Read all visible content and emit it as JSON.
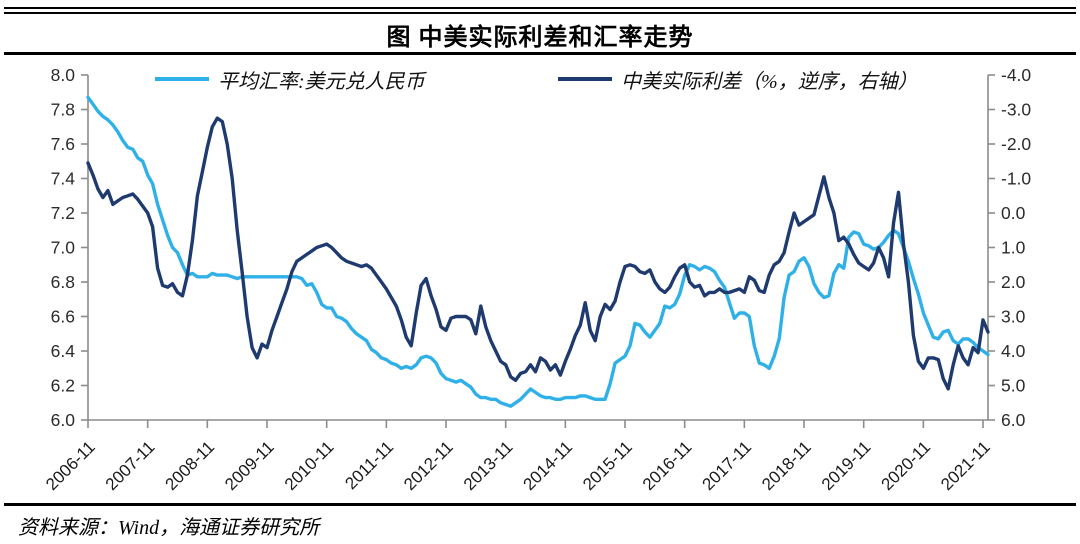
{
  "header": {
    "title": "图  中美实际利差和汇率走势"
  },
  "footer": {
    "source": "资料来源：Wind，海通证券研究所"
  },
  "chart_data": {
    "type": "line",
    "title": "图 中美实际利差和汇率走势",
    "grid": false,
    "legend_position": "top",
    "x_tick_labels": [
      "2006-11",
      "2007-11",
      "2008-11",
      "2009-11",
      "2010-11",
      "2011-11",
      "2012-11",
      "2013-11",
      "2014-11",
      "2015-11",
      "2016-11",
      "2017-11",
      "2018-11",
      "2019-11",
      "2020-11",
      "2021-11"
    ],
    "left_axis": {
      "min": 6.0,
      "max": 8.0,
      "inverted": false,
      "tick_labels": [
        "8.0",
        "7.8",
        "7.6",
        "7.4",
        "7.2",
        "7.0",
        "6.8",
        "6.6",
        "6.4",
        "6.2",
        "6.0"
      ]
    },
    "right_axis": {
      "min": -4.0,
      "max": 6.0,
      "inverted": true,
      "tick_labels": [
        "-4.0",
        "-3.0",
        "-2.0",
        "-1.0",
        "0.0",
        "1.0",
        "2.0",
        "3.0",
        "4.0",
        "5.0",
        "6.0"
      ]
    },
    "series": [
      {
        "id": "usdcny-line",
        "name": "平均汇率:美元兑人民币",
        "axis": "left",
        "color": "#2FB1E8",
        "start": "2006-11",
        "freq": "monthly",
        "values": [
          7.87,
          7.83,
          7.79,
          7.76,
          7.74,
          7.71,
          7.67,
          7.62,
          7.58,
          7.57,
          7.52,
          7.5,
          7.42,
          7.37,
          7.25,
          7.16,
          7.07,
          7.0,
          6.97,
          6.9,
          6.84,
          6.85,
          6.83,
          6.83,
          6.83,
          6.85,
          6.84,
          6.84,
          6.84,
          6.83,
          6.82,
          6.83,
          6.83,
          6.83,
          6.83,
          6.83,
          6.83,
          6.83,
          6.83,
          6.83,
          6.83,
          6.83,
          6.83,
          6.82,
          6.78,
          6.79,
          6.74,
          6.67,
          6.65,
          6.65,
          6.6,
          6.59,
          6.57,
          6.53,
          6.5,
          6.48,
          6.46,
          6.41,
          6.39,
          6.36,
          6.35,
          6.33,
          6.32,
          6.3,
          6.31,
          6.3,
          6.32,
          6.36,
          6.37,
          6.36,
          6.33,
          6.27,
          6.24,
          6.23,
          6.22,
          6.23,
          6.21,
          6.19,
          6.15,
          6.13,
          6.13,
          6.12,
          6.12,
          6.1,
          6.09,
          6.08,
          6.1,
          6.12,
          6.15,
          6.18,
          6.16,
          6.14,
          6.13,
          6.13,
          6.12,
          6.12,
          6.13,
          6.13,
          6.13,
          6.14,
          6.14,
          6.13,
          6.12,
          6.12,
          6.12,
          6.21,
          6.33,
          6.35,
          6.37,
          6.43,
          6.56,
          6.55,
          6.51,
          6.48,
          6.52,
          6.56,
          6.66,
          6.65,
          6.67,
          6.73,
          6.84,
          6.9,
          6.89,
          6.87,
          6.89,
          6.88,
          6.86,
          6.81,
          6.77,
          6.68,
          6.59,
          6.62,
          6.62,
          6.6,
          6.43,
          6.33,
          6.32,
          6.3,
          6.37,
          6.47,
          6.71,
          6.84,
          6.86,
          6.92,
          6.94,
          6.89,
          6.79,
          6.74,
          6.71,
          6.72,
          6.85,
          6.9,
          6.88,
          7.06,
          7.09,
          7.08,
          7.02,
          7.01,
          6.99,
          7.0,
          7.03,
          7.07,
          7.1,
          7.08,
          7.0,
          6.92,
          6.82,
          6.73,
          6.62,
          6.55,
          6.48,
          6.47,
          6.51,
          6.52,
          6.46,
          6.44,
          6.47,
          6.47,
          6.45,
          6.42,
          6.4,
          6.38
        ]
      },
      {
        "id": "rate-diff-line",
        "name": "中美实际利差（%，逆序，右轴）",
        "axis": "right",
        "color": "#1E3A6E",
        "start": "2006-11",
        "freq": "monthly",
        "values": [
          -1.45,
          -1.1,
          -0.7,
          -0.45,
          -0.65,
          -0.25,
          -0.35,
          -0.45,
          -0.5,
          -0.55,
          -0.4,
          -0.2,
          0.0,
          0.4,
          1.6,
          2.1,
          2.15,
          2.05,
          2.3,
          2.4,
          1.8,
          0.8,
          -0.5,
          -1.2,
          -1.9,
          -2.5,
          -2.75,
          -2.65,
          -2.0,
          -1.0,
          0.5,
          1.7,
          3.0,
          3.9,
          4.2,
          3.8,
          3.9,
          3.4,
          3.0,
          2.6,
          2.2,
          1.7,
          1.4,
          1.3,
          1.2,
          1.1,
          1.0,
          0.95,
          0.9,
          1.0,
          1.15,
          1.3,
          1.4,
          1.45,
          1.5,
          1.55,
          1.5,
          1.6,
          1.8,
          2.0,
          2.2,
          2.45,
          2.7,
          3.1,
          3.6,
          3.85,
          2.9,
          2.1,
          1.9,
          2.4,
          2.8,
          3.3,
          3.4,
          3.05,
          3.0,
          3.0,
          3.0,
          3.1,
          3.5,
          2.7,
          3.3,
          3.7,
          4.0,
          4.3,
          4.4,
          4.75,
          4.85,
          4.65,
          4.6,
          4.4,
          4.6,
          4.2,
          4.3,
          4.55,
          4.4,
          4.7,
          4.3,
          3.95,
          3.55,
          3.25,
          2.6,
          3.4,
          3.7,
          3.0,
          2.65,
          2.8,
          2.55,
          2.0,
          1.55,
          1.5,
          1.55,
          1.7,
          1.75,
          1.65,
          2.0,
          2.2,
          2.3,
          2.15,
          1.85,
          1.6,
          1.5,
          2.0,
          2.15,
          2.1,
          2.4,
          2.3,
          2.3,
          2.2,
          2.3,
          2.3,
          2.25,
          2.2,
          2.3,
          1.85,
          1.95,
          2.25,
          2.3,
          1.8,
          1.5,
          1.4,
          1.15,
          0.55,
          0.0,
          0.35,
          0.25,
          0.15,
          0.05,
          -0.5,
          -1.05,
          -0.45,
          0.0,
          0.8,
          0.7,
          0.9,
          1.2,
          1.45,
          1.55,
          1.65,
          1.45,
          1.0,
          1.3,
          1.85,
          0.3,
          -0.6,
          0.9,
          2.0,
          3.55,
          4.3,
          4.5,
          4.2,
          4.2,
          4.25,
          4.8,
          5.1,
          4.4,
          3.85,
          4.2,
          4.4,
          3.9,
          4.05,
          3.1,
          3.45
        ]
      }
    ]
  }
}
